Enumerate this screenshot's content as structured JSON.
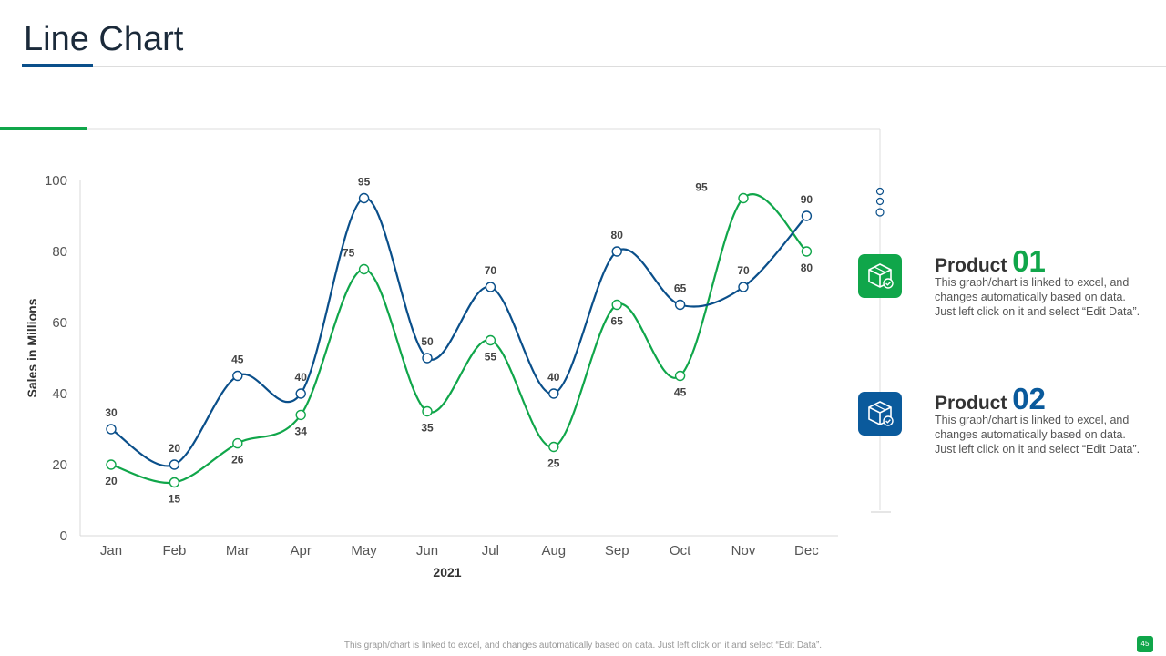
{
  "page": {
    "title": "Line Chart",
    "footer_note": "This graph/chart is linked to excel, and changes automatically based on data. Just left click on it and select “Edit Data”.",
    "page_number": "45"
  },
  "colors": {
    "product01": "#10a64a",
    "product02": "#0a4f8a"
  },
  "chart_data": {
    "type": "line",
    "categories": [
      "Jan",
      "Feb",
      "Mar",
      "Apr",
      "May",
      "Jun",
      "Jul",
      "Aug",
      "Sep",
      "Oct",
      "Nov",
      "Dec"
    ],
    "series": [
      {
        "name": "Product 01",
        "color": "#10a64a",
        "values": [
          20,
          15,
          26,
          34,
          75,
          35,
          55,
          25,
          65,
          45,
          95,
          80
        ]
      },
      {
        "name": "Product 02",
        "color": "#0a4f8a",
        "values": [
          30,
          20,
          45,
          40,
          95,
          50,
          70,
          40,
          80,
          65,
          70,
          90
        ]
      }
    ],
    "xlabel": "2021",
    "ylabel": "Sales in Millions",
    "ylim": [
      0,
      100
    ],
    "yticks": [
      "0",
      "20",
      "40",
      "60",
      "80",
      "100"
    ]
  },
  "legend": [
    {
      "label": "Product",
      "number": "01",
      "description": "This graph/chart is linked to excel, and changes automatically based on data. Just left click on it and select “Edit Data”.",
      "icon": "box-check-icon"
    },
    {
      "label": "Product",
      "number": "02",
      "description": "This graph/chart is linked to excel, and changes automatically based on data. Just left click on it and select “Edit Data”.",
      "icon": "box-check-icon"
    }
  ]
}
